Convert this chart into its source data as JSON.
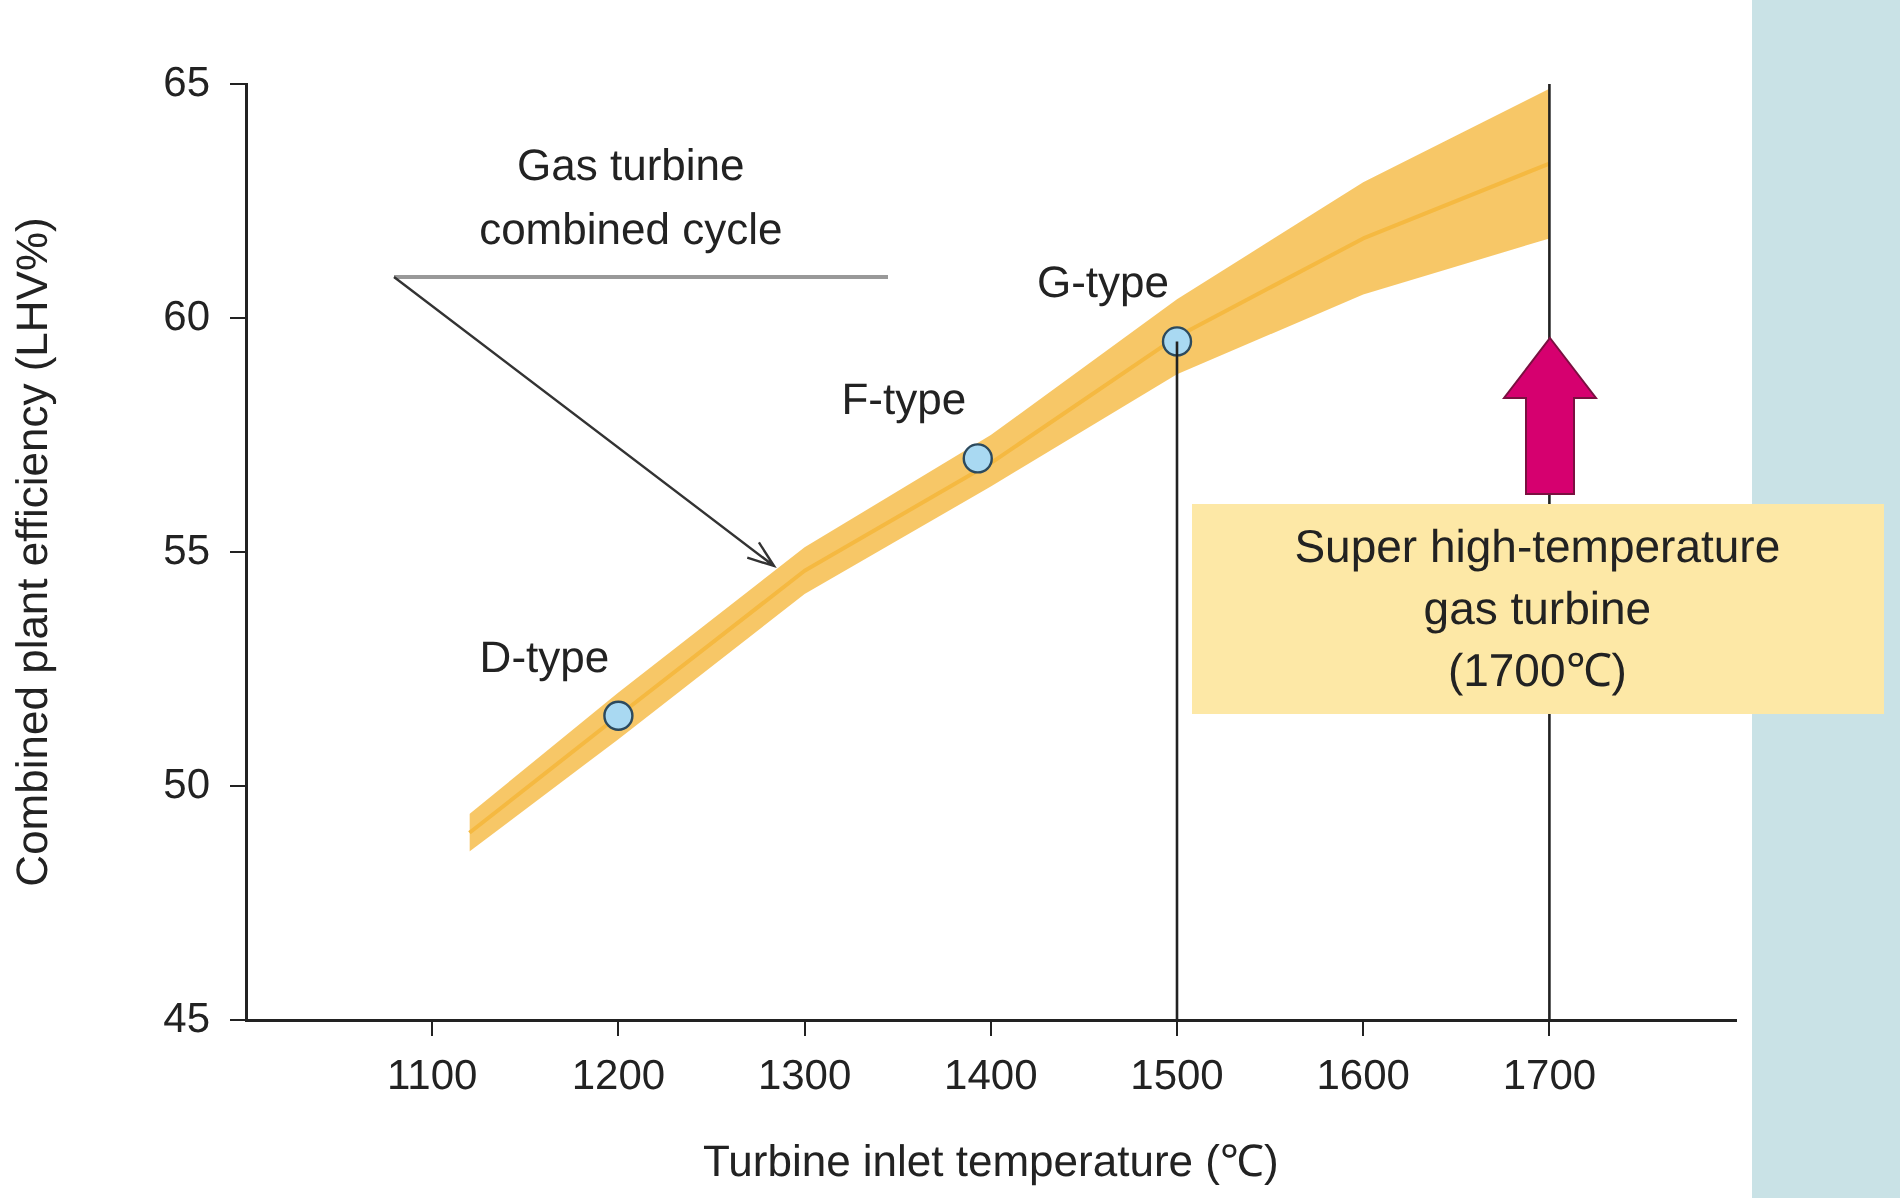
{
  "chart_data": {
    "type": "line",
    "xlabel": "Turbine inlet temperature (℃)",
    "ylabel": "Combined plant efficiency (LHV%)",
    "xlim": [
      1000,
      1800
    ],
    "xticks": [
      1100,
      1200,
      1300,
      1400,
      1500,
      1600,
      1700
    ],
    "ylim": [
      45,
      65
    ],
    "yticks": [
      45,
      50,
      55,
      60,
      65
    ],
    "grid": false,
    "legend": false,
    "series": [
      {
        "color": "#f5b941",
        "x": [
          1120,
          1200,
          1300,
          1400,
          1500,
          1600,
          1700
        ],
        "values": [
          49.0,
          51.5,
          54.6,
          56.9,
          59.6,
          61.7,
          63.3
        ],
        "lower": [
          48.6,
          51.0,
          54.1,
          56.4,
          58.8,
          60.5,
          61.7
        ],
        "upper": [
          49.4,
          52.0,
          55.1,
          57.5,
          60.4,
          62.9,
          64.9
        ],
        "marker": "none"
      },
      {
        "type": "scatter",
        "color": "#a9d9f2",
        "x": [
          1200,
          1393,
          1500
        ],
        "values": [
          51.5,
          57.0,
          59.5
        ],
        "marker": "circle"
      }
    ],
    "ref_lines": [
      {
        "axis": "x",
        "value": 1500,
        "color": "#222222"
      },
      {
        "axis": "x",
        "value": 1700,
        "color": "#222222"
      }
    ],
    "annotations": [
      {
        "text": "D-type",
        "x": 1200,
        "y": 51.5
      },
      {
        "text": "F-type",
        "x": 1393,
        "y": 57.0
      },
      {
        "text": "G-type",
        "x": 1500,
        "y": 59.5
      },
      "Gas turbine\ncombined cycle",
      {
        "text": "Super high-temperature\ngas turbine\n(1700℃)",
        "x": 1700,
        "y": 53.8
      }
    ]
  }
}
